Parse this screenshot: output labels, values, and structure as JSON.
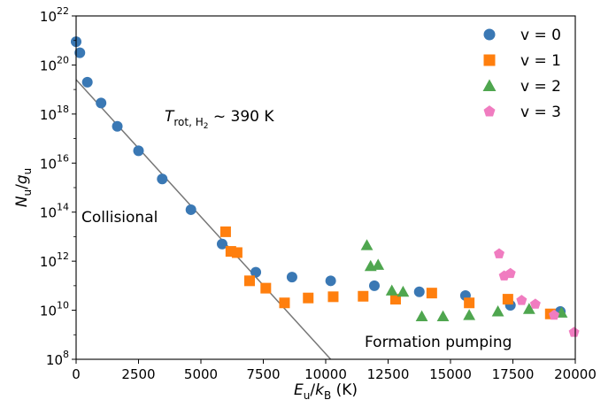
{
  "chart_data": {
    "type": "scatter",
    "title": "",
    "xlabel": "E_u/k_B (K)",
    "ylabel": "N_u/g_u",
    "xlim": [
      0,
      20000
    ],
    "ylim_log10": [
      8,
      22
    ],
    "yscale": "log",
    "x_ticks": [
      0,
      2500,
      5000,
      7500,
      10000,
      12500,
      15000,
      17500,
      20000
    ],
    "y_ticks_exp": [
      8,
      10,
      12,
      14,
      16,
      18,
      20,
      22
    ],
    "grid": false,
    "legend_position": "top-right",
    "series": [
      {
        "name": "v = 0",
        "marker": "circle",
        "color": "#3a78b4",
        "points": [
          [
            0,
            20.95
          ],
          [
            150,
            20.5
          ],
          [
            450,
            19.3
          ],
          [
            1000,
            18.45
          ],
          [
            1650,
            17.5
          ],
          [
            2500,
            16.5
          ],
          [
            3450,
            15.35
          ],
          [
            4600,
            14.1
          ],
          [
            5850,
            12.7
          ],
          [
            7200,
            11.55
          ],
          [
            8650,
            11.35
          ],
          [
            10200,
            11.2
          ],
          [
            11950,
            11.0
          ],
          [
            13750,
            10.75
          ],
          [
            15600,
            10.6
          ],
          [
            17400,
            10.2
          ],
          [
            19400,
            9.95
          ]
        ]
      },
      {
        "name": "v = 1",
        "marker": "square",
        "color": "#ff7f0e",
        "points": [
          [
            5990,
            13.2
          ],
          [
            6200,
            12.4
          ],
          [
            6450,
            12.35
          ],
          [
            6950,
            11.2
          ],
          [
            7600,
            10.9
          ],
          [
            8350,
            10.3
          ],
          [
            9300,
            10.5
          ],
          [
            10300,
            10.55
          ],
          [
            11500,
            10.57
          ],
          [
            12800,
            10.45
          ],
          [
            14250,
            10.7
          ],
          [
            15750,
            10.3
          ],
          [
            17300,
            10.45
          ],
          [
            19000,
            9.85
          ]
        ]
      },
      {
        "name": "v = 2",
        "marker": "triangle",
        "color": "#4fa64f",
        "points": [
          [
            11650,
            12.65
          ],
          [
            11800,
            11.8
          ],
          [
            12100,
            11.85
          ],
          [
            12650,
            10.8
          ],
          [
            13100,
            10.75
          ],
          [
            13850,
            9.75
          ],
          [
            14700,
            9.75
          ],
          [
            15750,
            9.8
          ],
          [
            16900,
            9.95
          ],
          [
            18150,
            10.05
          ],
          [
            19450,
            9.9
          ]
        ]
      },
      {
        "name": "v = 3",
        "marker": "pentagon",
        "color": "#f07cc0",
        "points": [
          [
            16950,
            12.3
          ],
          [
            17150,
            11.4
          ],
          [
            17400,
            11.5
          ],
          [
            17850,
            10.4
          ],
          [
            18400,
            10.25
          ],
          [
            19150,
            9.8
          ],
          [
            19950,
            9.1
          ]
        ]
      }
    ],
    "fit_line": {
      "color": "#777777",
      "points": [
        [
          0,
          19.4
        ],
        [
          10200,
          8
        ]
      ]
    },
    "annotations": {
      "temperature": {
        "T": "T",
        "sub": "rot, H",
        "subsub": "2",
        "rest": " ~ 390 K"
      },
      "collisional": "Collisional",
      "formation": "Formation pumping"
    }
  }
}
